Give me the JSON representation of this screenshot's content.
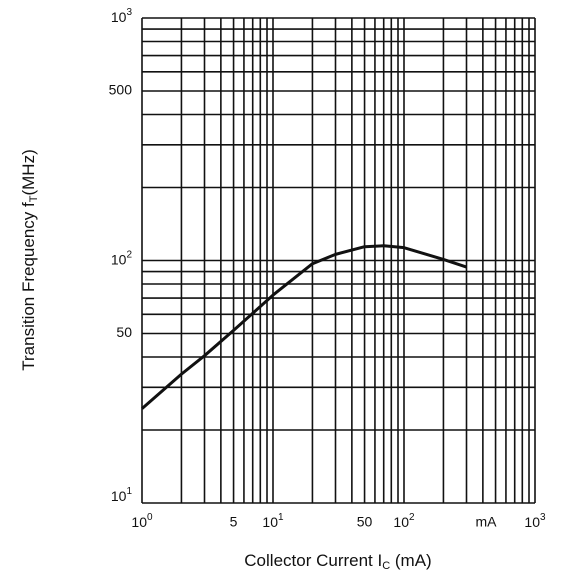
{
  "chart_data": {
    "type": "line",
    "x_label": [
      "Collector Current  I",
      "C",
      " (mA)"
    ],
    "y_label": [
      "Transition Frequency  f",
      "T",
      "(MHz)"
    ],
    "x_unit_note": "mA",
    "log_x": true,
    "log_y": true,
    "xlim": [
      1,
      1000
    ],
    "ylim": [
      10,
      1000
    ],
    "xticks": [
      {
        "value": 1,
        "label": "10",
        "sup": "0"
      },
      5,
      {
        "value": 10,
        "label": "10",
        "sup": "1"
      },
      50,
      {
        "value": 100,
        "label": "10",
        "sup": "2"
      },
      {
        "value": 1000,
        "label": "10",
        "sup": "3"
      }
    ],
    "yticks": [
      {
        "value": 10,
        "label": "10",
        "sup": "1"
      },
      50,
      {
        "value": 100,
        "label": "10",
        "sup": "2"
      },
      500,
      {
        "value": 1000,
        "label": "10",
        "sup": "3"
      }
    ],
    "xgrid": [
      1,
      2,
      3,
      4,
      5,
      6,
      7,
      8,
      9,
      10,
      20,
      30,
      40,
      50,
      60,
      70,
      80,
      90,
      100,
      200,
      300,
      400,
      500,
      600,
      700,
      800,
      900,
      1000
    ],
    "ygrid": [
      10,
      20,
      30,
      40,
      50,
      60,
      70,
      80,
      90,
      100,
      200,
      300,
      400,
      500,
      600,
      700,
      800,
      900,
      1000
    ],
    "x": [
      1,
      2,
      3,
      5,
      10,
      20,
      30,
      50,
      70,
      100,
      200,
      300
    ],
    "series": [
      {
        "color": "#111111",
        "values": [
          24.5,
          34,
          40.5,
          51.5,
          72,
          97,
          106,
          114,
          115,
          113,
          101,
          94
        ]
      }
    ]
  }
}
